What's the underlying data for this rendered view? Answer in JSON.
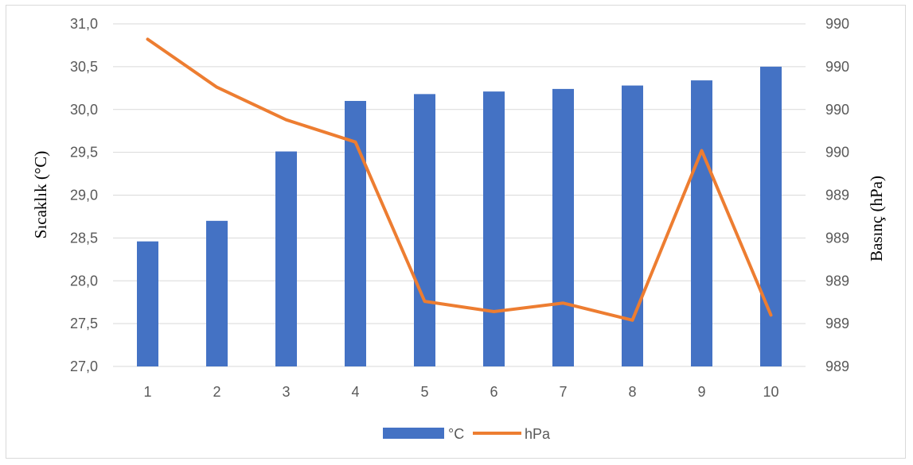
{
  "chart_data": {
    "type": "bar",
    "categories": [
      "1",
      "2",
      "3",
      "4",
      "5",
      "6",
      "7",
      "8",
      "9",
      "10"
    ],
    "series": [
      {
        "name": "°C",
        "type": "bar",
        "axis": "left",
        "color": "#4472C4",
        "values": [
          28.46,
          28.7,
          29.51,
          30.1,
          30.18,
          30.21,
          30.24,
          30.28,
          30.34,
          30.5
        ]
      },
      {
        "name": "hPa",
        "type": "line",
        "axis": "right",
        "color": "#ED7D31",
        "values": [
          0.955,
          0.815,
          0.72,
          0.655,
          0.19,
          0.16,
          0.185,
          0.135,
          0.63,
          0.15
        ]
      }
    ],
    "ylabel": "Sıcaklık (°C)",
    "ylabel_right": "Basınç (hPa)",
    "ylim": [
      27.0,
      31.0
    ],
    "yticks": [
      "27,0",
      "27,5",
      "28,0",
      "28,5",
      "29,0",
      "29,5",
      "30,0",
      "30,5",
      "31,0"
    ],
    "yticks_right": [
      "989",
      "989",
      "989",
      "989",
      "989",
      "990",
      "990",
      "990",
      "990"
    ],
    "grid": true,
    "legend": "bottom"
  }
}
